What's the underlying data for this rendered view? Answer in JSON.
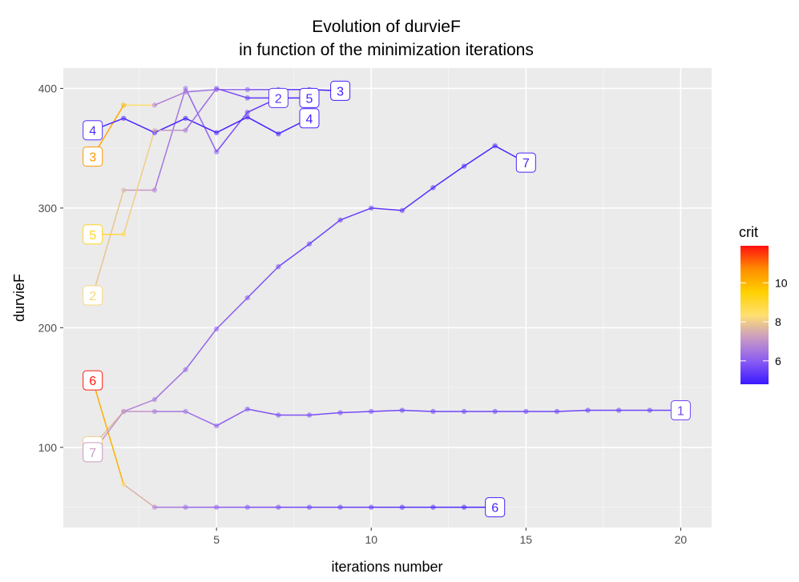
{
  "chart_data": {
    "type": "line",
    "title_lines": [
      "Evolution of durvieF",
      "in function of the minimization iterations"
    ],
    "xlabel": "iterations number",
    "ylabel": "durvieF",
    "xlim": [
      0.05,
      21.0
    ],
    "ylim": [
      33,
      417
    ],
    "x_ticks": [
      5,
      10,
      15,
      20
    ],
    "y_ticks": [
      100,
      200,
      300,
      400
    ],
    "grid": true,
    "legend": {
      "title": "crit",
      "placement": "right",
      "range": [
        4.8,
        11.9
      ],
      "ticks": [
        6,
        8,
        10
      ],
      "colors": [
        "#3a18ff",
        "#8a5cf2",
        "#c89ac4",
        "#ffe070",
        "#ffd000",
        "#ff8c00",
        "#ff1010"
      ]
    },
    "series": [
      {
        "name": "1",
        "label_x": 20,
        "label_y": 131,
        "x": [
          1,
          2,
          3,
          4,
          5,
          6,
          7,
          8,
          9,
          10,
          11,
          12,
          13,
          14,
          15,
          16,
          17,
          18,
          19,
          20
        ],
        "y": [
          101,
          130,
          130,
          130,
          118,
          132,
          127,
          127,
          129,
          130,
          131,
          130,
          130,
          130,
          130,
          130,
          131,
          131,
          131,
          131
        ],
        "crit": [
          8.0,
          7.5,
          6.6,
          6.4,
          6.1,
          5.9,
          5.8,
          5.8,
          5.7,
          5.7,
          5.6,
          5.6,
          5.6,
          5.6,
          5.6,
          5.6,
          5.6,
          5.6,
          5.6,
          5.6
        ]
      },
      {
        "name": "2",
        "label_x": 7,
        "label_y": 392,
        "x": [
          1,
          2,
          3,
          4,
          5,
          6,
          7
        ],
        "y": [
          227,
          315,
          315,
          400,
          347,
          380,
          392
        ],
        "crit": [
          8.2,
          7.6,
          6.7,
          6.3,
          6.0,
          5.5,
          5.3
        ]
      },
      {
        "name": "3",
        "label_x": 9,
        "label_y": 398,
        "x": [
          1,
          2,
          3,
          4,
          5,
          6,
          7,
          8,
          9
        ],
        "y": [
          343,
          386,
          386,
          397,
          399,
          399,
          399,
          399,
          398
        ],
        "crit": [
          10.5,
          10.0,
          6.8,
          6.5,
          6.3,
          6.0,
          5.5,
          5.0,
          4.9
        ]
      },
      {
        "name": "4",
        "label_x": 8,
        "label_y": 375,
        "x": [
          1,
          2,
          3,
          4,
          5,
          6,
          7,
          8
        ],
        "y": [
          365,
          375,
          363,
          375,
          363,
          376,
          362,
          375
        ],
        "crit": [
          5.2,
          5.1,
          5.0,
          5.0,
          5.0,
          5.0,
          5.0,
          5.0
        ]
      },
      {
        "name": "5",
        "label_x": 8,
        "label_y": 392,
        "x": [
          1,
          2,
          3,
          4,
          5,
          6,
          7,
          8
        ],
        "y": [
          278,
          278,
          365,
          365,
          400,
          392,
          392,
          392
        ],
        "crit": [
          9.2,
          8.6,
          7.5,
          6.6,
          6.0,
          5.5,
          5.2,
          5.0
        ]
      },
      {
        "name": "6",
        "label_x": 14,
        "label_y": 50,
        "x": [
          1,
          2,
          3,
          4,
          5,
          6,
          7,
          8,
          9,
          10,
          11,
          12,
          13,
          14
        ],
        "y": [
          156,
          69,
          50,
          50,
          50,
          50,
          50,
          50,
          50,
          50,
          50,
          50,
          50,
          50
        ],
        "crit": [
          11.8,
          8.4,
          6.7,
          6.3,
          6.1,
          5.9,
          5.7,
          5.6,
          5.5,
          5.4,
          5.3,
          5.2,
          5.1,
          5.0
        ]
      },
      {
        "name": "7",
        "label_x": 15,
        "label_y": 338,
        "x": [
          1,
          2,
          3,
          4,
          5,
          6,
          7,
          8,
          9,
          10,
          11,
          12,
          13,
          14,
          15
        ],
        "y": [
          96,
          130,
          140,
          165,
          199,
          225,
          251,
          270,
          290,
          300,
          298,
          317,
          335,
          352,
          338
        ],
        "crit": [
          7.2,
          6.9,
          6.6,
          6.3,
          6.1,
          5.9,
          5.7,
          5.6,
          5.5,
          5.4,
          5.3,
          5.2,
          5.1,
          5.0,
          5.0
        ]
      }
    ],
    "start_labels": [
      {
        "name": "4",
        "y": 365,
        "crit": 5.2
      },
      {
        "name": "3",
        "y": 343,
        "crit": 10.5
      },
      {
        "name": "5",
        "y": 278,
        "crit": 9.2
      },
      {
        "name": "2",
        "y": 227,
        "crit": 8.2
      },
      {
        "name": "6",
        "y": 156,
        "crit": 11.8
      },
      {
        "name": "1",
        "y": 101,
        "crit": 8.0
      },
      {
        "name": "7",
        "y": 96,
        "crit": 7.2
      }
    ]
  }
}
